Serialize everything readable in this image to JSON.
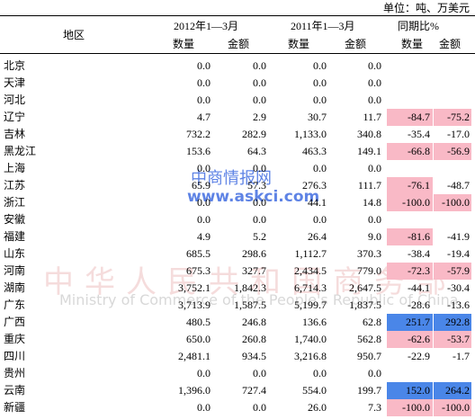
{
  "unit": "单位：吨、万美元",
  "header": {
    "region": "地区",
    "period_2012": "2012年1—3月",
    "period_2011": "2011年1—3月",
    "change": "同期比%",
    "quantity": "数量",
    "amount": "金额"
  },
  "rows": [
    {
      "region": "北京",
      "values": [
        "0.0",
        "0.0",
        "0.0",
        "0.0"
      ],
      "change": [
        null,
        null
      ],
      "change_colors": [
        null,
        null
      ]
    },
    {
      "region": "天津",
      "values": [
        "0.0",
        "0.0",
        "0.0",
        "0.0"
      ],
      "change": [
        null,
        null
      ],
      "change_colors": [
        null,
        null
      ]
    },
    {
      "region": "河北",
      "values": [
        "0.0",
        "0.0",
        "0.0",
        "0.0"
      ],
      "change": [
        null,
        null
      ],
      "change_colors": [
        null,
        null
      ]
    },
    {
      "region": "辽宁",
      "values": [
        "4.7",
        "2.9",
        "30.7",
        "11.7"
      ],
      "change": [
        "-84.7",
        "-75.2"
      ],
      "change_colors": [
        "#f9b9c6",
        "#f9b9c6"
      ]
    },
    {
      "region": "吉林",
      "values": [
        "732.2",
        "282.9",
        "1,133.0",
        "340.8"
      ],
      "change": [
        "-35.4",
        "-17.0"
      ],
      "change_colors": [
        null,
        null
      ]
    },
    {
      "region": "黑龙江",
      "values": [
        "153.6",
        "64.3",
        "463.3",
        "149.1"
      ],
      "change": [
        "-66.8",
        "-56.9"
      ],
      "change_colors": [
        "#f9b9c6",
        "#f9b9c6"
      ]
    },
    {
      "region": "上海",
      "values": [
        "0.0",
        "0.0",
        "0.0",
        "0.0"
      ],
      "change": [
        null,
        null
      ],
      "change_colors": [
        null,
        null
      ]
    },
    {
      "region": "江苏",
      "values": [
        "65.9",
        "57.3",
        "276.3",
        "111.7"
      ],
      "change": [
        "-76.1",
        "-48.7"
      ],
      "change_colors": [
        "#f9b9c6",
        null
      ]
    },
    {
      "region": "浙江",
      "values": [
        "0.0",
        "0.0",
        "44.1",
        "14.8"
      ],
      "change": [
        "-100.0",
        "-100.0"
      ],
      "change_colors": [
        "#f9b9c6",
        "#f9b9c6"
      ]
    },
    {
      "region": "安徽",
      "values": [
        "0.0",
        "0.0",
        "0.0",
        "0.0"
      ],
      "change": [
        null,
        null
      ],
      "change_colors": [
        null,
        null
      ]
    },
    {
      "region": "福建",
      "values": [
        "4.9",
        "5.2",
        "26.4",
        "9.0"
      ],
      "change": [
        "-81.6",
        "-41.9"
      ],
      "change_colors": [
        "#f9b9c6",
        null
      ]
    },
    {
      "region": "山东",
      "values": [
        "685.5",
        "298.6",
        "1,112.7",
        "370.3"
      ],
      "change": [
        "-38.4",
        "-19.4"
      ],
      "change_colors": [
        null,
        null
      ]
    },
    {
      "region": "河南",
      "values": [
        "675.3",
        "327.7",
        "2,434.5",
        "779.0"
      ],
      "change": [
        "-72.3",
        "-57.9"
      ],
      "change_colors": [
        "#f9b9c6",
        "#f9b9c6"
      ]
    },
    {
      "region": "湖南",
      "values": [
        "3,752.1",
        "1,842.3",
        "6,714.3",
        "2,647.5"
      ],
      "change": [
        "-44.1",
        "-30.4"
      ],
      "change_colors": [
        null,
        null
      ]
    },
    {
      "region": "广东",
      "values": [
        "3,713.9",
        "1,587.5",
        "5,199.7",
        "1,837.5"
      ],
      "change": [
        "-28.6",
        "-13.6"
      ],
      "change_colors": [
        null,
        null
      ]
    },
    {
      "region": "广西",
      "values": [
        "480.5",
        "246.8",
        "136.6",
        "62.8"
      ],
      "change": [
        "251.7",
        "292.8"
      ],
      "change_colors": [
        "#4a86e8",
        "#4a86e8"
      ]
    },
    {
      "region": "重庆",
      "values": [
        "650.0",
        "260.8",
        "1,740.0",
        "562.8"
      ],
      "change": [
        "-62.6",
        "-53.7"
      ],
      "change_colors": [
        "#f9b9c6",
        "#f9b9c6"
      ]
    },
    {
      "region": "四川",
      "values": [
        "2,481.1",
        "934.5",
        "3,216.8",
        "950.7"
      ],
      "change": [
        "-22.9",
        "-1.7"
      ],
      "change_colors": [
        null,
        null
      ]
    },
    {
      "region": "贵州",
      "values": [
        "0.0",
        "0.0",
        "0.0",
        "0.0"
      ],
      "change": [
        null,
        null
      ],
      "change_colors": [
        null,
        null
      ]
    },
    {
      "region": "云南",
      "values": [
        "1,396.0",
        "727.4",
        "554.0",
        "199.7"
      ],
      "change": [
        "152.0",
        "264.2"
      ],
      "change_colors": [
        "#4a86e8",
        "#4a86e8"
      ]
    },
    {
      "region": "新疆",
      "values": [
        "0.0",
        "0.0",
        "26.0",
        "7.3"
      ],
      "change": [
        "-100.0",
        "-100.0"
      ],
      "change_colors": [
        "#f9b9c6",
        "#f9b9c6"
      ]
    }
  ],
  "watermarks": {
    "site": "中商情报网",
    "url": "www.askci.com",
    "ministry_cn": "中华人民共和国商务部",
    "ministry_en": "Ministry of Commerce of the People's Republic of China"
  }
}
